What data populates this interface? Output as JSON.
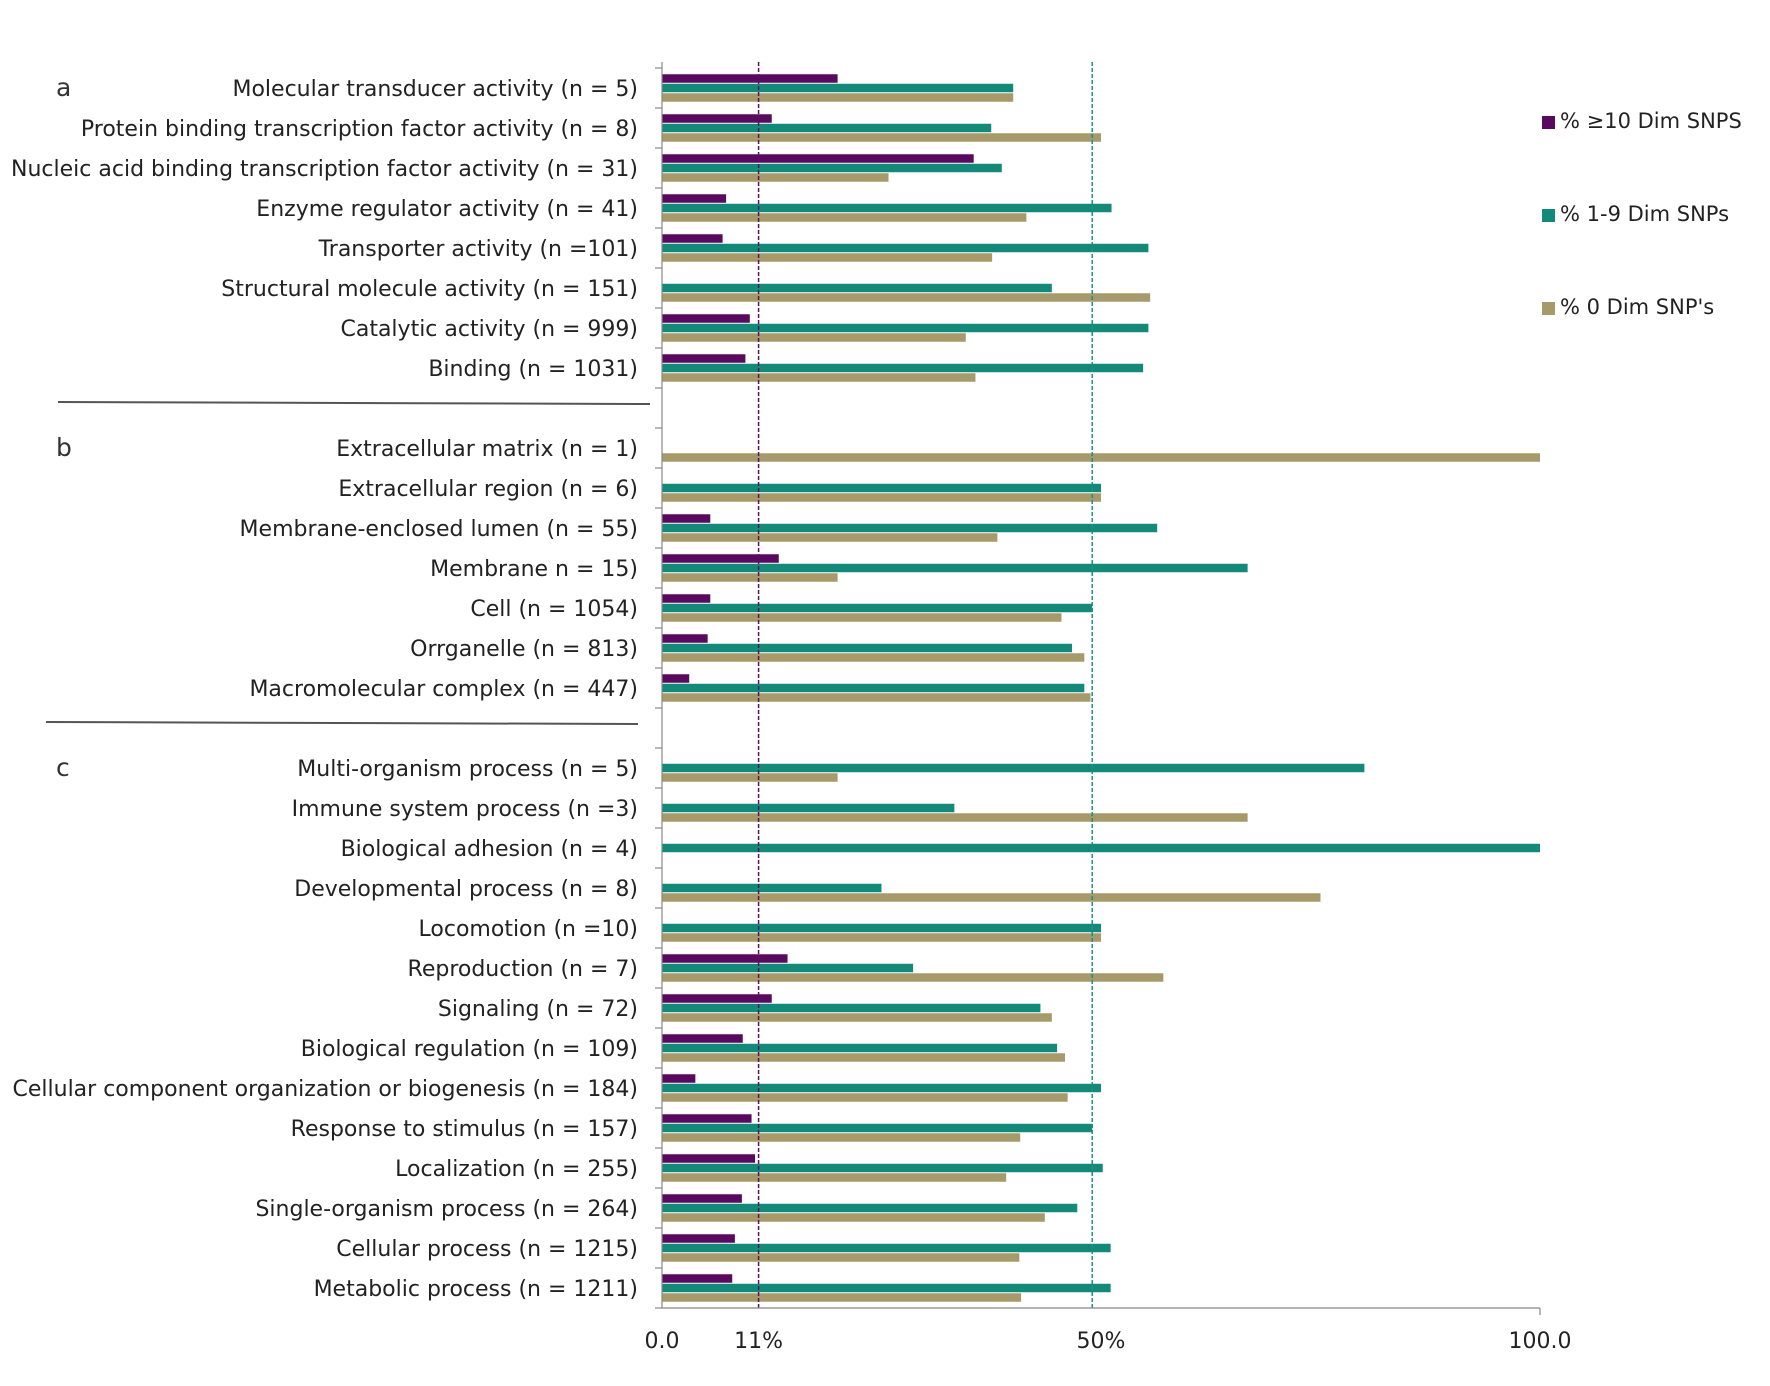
{
  "chart_data": {
    "type": "bar",
    "orientation": "horizontal",
    "xlim": [
      0,
      100
    ],
    "x_tick_labels": [
      {
        "value": 0,
        "label": "0.0"
      },
      {
        "value": 11,
        "label": "11%"
      },
      {
        "value": 50,
        "label": "50%"
      },
      {
        "value": 100,
        "label": "100.0"
      }
    ],
    "reference_lines": [
      {
        "value": 11,
        "color": "#5c1060",
        "style": "dashed"
      },
      {
        "value": 49,
        "color": "#1f8f80",
        "style": "dashed"
      }
    ],
    "grid": false,
    "legend_position": "top-right",
    "series": [
      {
        "name": "% ≥10 Dim SNPS",
        "color": "#5a0a5e"
      },
      {
        "name": "% 1-9 Dim SNPs",
        "color": "#13897a"
      },
      {
        "name": "% 0 Dim SNP's",
        "color": "#a69a6b"
      }
    ],
    "sections": [
      {
        "label": "a",
        "categories": [
          {
            "label": "Molecular transducer activity (n = 5)",
            "values": [
              20,
              40,
              40
            ]
          },
          {
            "label": "Protein binding transcription factor activity (n = 8)",
            "values": [
              12.5,
              37.5,
              50
            ]
          },
          {
            "label": "Nucleic acid binding transcription factor activity (n = 31)",
            "values": [
              35.5,
              38.7,
              25.8
            ]
          },
          {
            "label": "Enzyme regulator activity (n = 41)",
            "values": [
              7.3,
              51.2,
              41.5
            ]
          },
          {
            "label": "Transporter activity (n =101)",
            "values": [
              6.9,
              55.4,
              37.6
            ]
          },
          {
            "label": "Structural molecule activity (n = 151)",
            "values": [
              0,
              44.4,
              55.6
            ]
          },
          {
            "label": "Catalytic activity (n = 999)",
            "values": [
              10,
              55.4,
              34.6
            ]
          },
          {
            "label": "Binding (n = 1031)",
            "values": [
              9.5,
              54.8,
              35.7
            ]
          }
        ]
      },
      {
        "label": "b",
        "categories": [
          {
            "label": "Extracellular matrix (n =  1)",
            "values": [
              0,
              0,
              100
            ]
          },
          {
            "label": "Extracellular region (n = 6)",
            "values": [
              0,
              50,
              50
            ]
          },
          {
            "label": "Membrane-enclosed lumen (n = 55)",
            "values": [
              5.5,
              56.4,
              38.2
            ]
          },
          {
            "label": "Membrane n = 15)",
            "values": [
              13.3,
              66.7,
              20
            ]
          },
          {
            "label": "Cell (n = 1054)",
            "values": [
              5.5,
              49,
              45.5
            ]
          },
          {
            "label": "Orrganelle (n = 813)",
            "values": [
              5.2,
              46.7,
              48.1
            ]
          },
          {
            "label": "Macromolecular complex (n = 447)",
            "values": [
              3.1,
              48.1,
              48.8
            ]
          }
        ]
      },
      {
        "label": "c",
        "categories": [
          {
            "label": "Multi-organism process (n = 5)",
            "values": [
              0,
              80,
              20
            ]
          },
          {
            "label": "Immune system process (n =3)",
            "values": [
              0,
              33.3,
              66.7
            ]
          },
          {
            "label": "Biological adhesion (n = 4)",
            "values": [
              0,
              100,
              0
            ]
          },
          {
            "label": "Developmental process (n = 8)",
            "values": [
              0,
              25,
              75
            ]
          },
          {
            "label": "Locomotion (n =10)",
            "values": [
              0,
              50,
              50
            ]
          },
          {
            "label": "Reproduction (n = 7)",
            "values": [
              14.3,
              28.6,
              57.1
            ]
          },
          {
            "label": "Signaling (n = 72)",
            "values": [
              12.5,
              43.1,
              44.4
            ]
          },
          {
            "label": "Biological regulation (n = 109)",
            "values": [
              9.2,
              45,
              45.9
            ]
          },
          {
            "label": "Cellular component organization or biogenesis (n = 184)",
            "values": [
              3.8,
              50,
              46.2
            ]
          },
          {
            "label": "Response to stimulus (n = 157)",
            "values": [
              10.2,
              49,
              40.8
            ]
          },
          {
            "label": "Localization (n = 255)",
            "values": [
              10.6,
              50.2,
              39.2
            ]
          },
          {
            "label": "Single-organism process (n = 264)",
            "values": [
              9.1,
              47.3,
              43.6
            ]
          },
          {
            "label": "Cellular process (n = 1215)",
            "values": [
              8.3,
              51.1,
              40.7
            ]
          },
          {
            "label": "Metabolic process (n = 1211)",
            "values": [
              8,
              51.1,
              40.9
            ]
          }
        ]
      }
    ]
  }
}
